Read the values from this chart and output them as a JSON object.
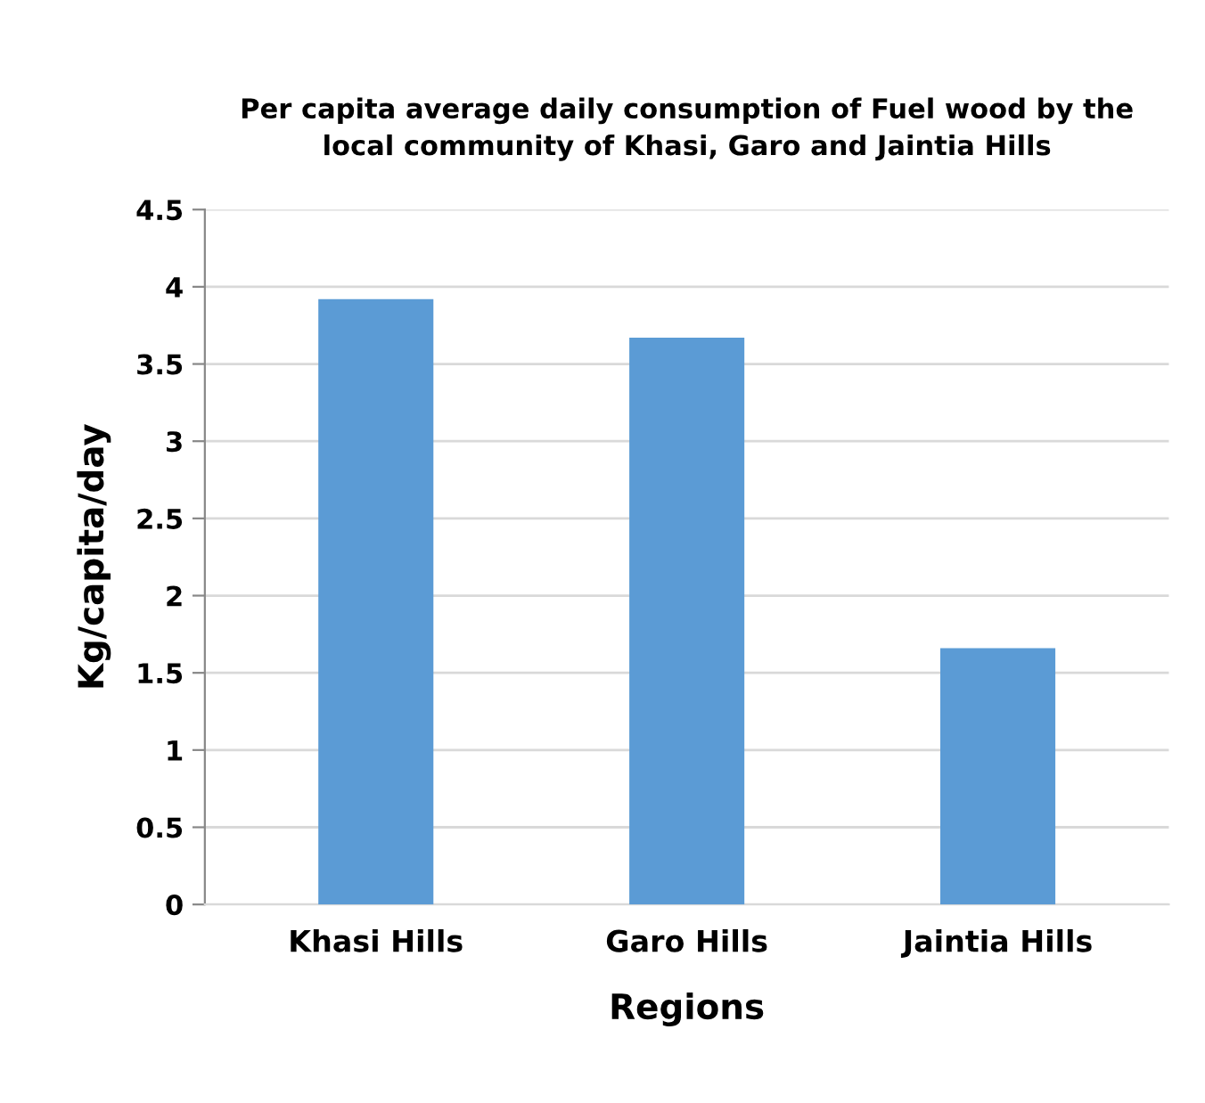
{
  "chart_data": {
    "type": "bar",
    "title": "Per capita average daily consumption of Fuel wood by the\nlocal community of Khasi, Garo and Jaintia Hills",
    "xlabel": "Regions",
    "ylabel": "Kg/capita/day",
    "categories": [
      "Khasi Hills",
      "Garo Hills",
      "Jaintia Hills"
    ],
    "values": [
      3.92,
      3.67,
      1.66
    ],
    "color": "#5b9bd5",
    "ylim": [
      0,
      4.5
    ],
    "yticks": [
      0,
      0.5,
      1,
      1.5,
      2,
      2.5,
      3,
      3.5,
      4,
      4.5
    ],
    "grid": "y"
  }
}
